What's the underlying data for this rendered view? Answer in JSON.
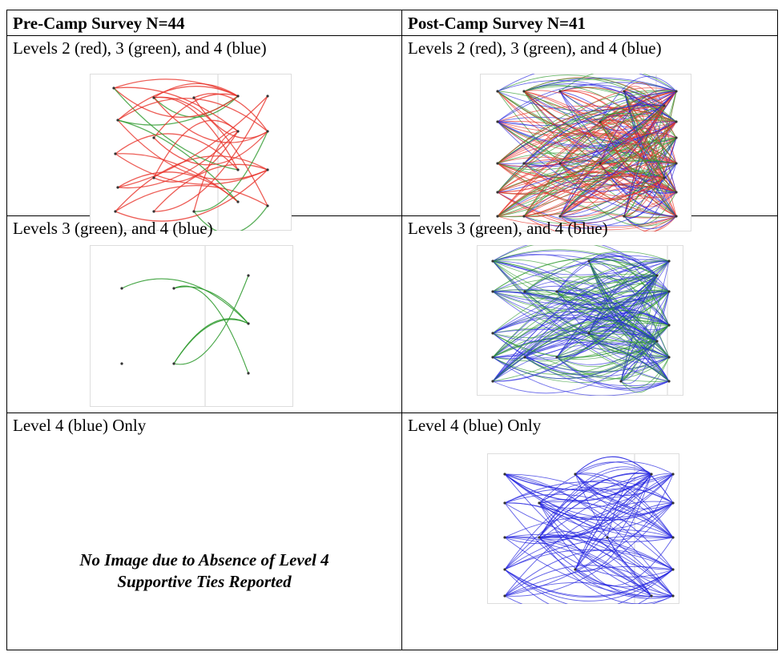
{
  "table": {
    "headers": {
      "pre": "Pre-Camp Survey N=44",
      "post": "Post-Camp Survey N=41"
    },
    "rows": [
      {
        "pre_label": "Levels 2 (red), 3 (green), and 4 (blue)",
        "post_label": "Levels 2 (red), 3 (green), and 4 (blue)"
      },
      {
        "pre_label": "Levels 3 (green), and 4 (blue)",
        "post_label": "Levels 3 (green), and 4 (blue)"
      },
      {
        "pre_label": "Level 4 (blue) Only",
        "post_label": "Level 4 (blue) Only"
      }
    ],
    "no_image_text_line1": "No Image due to Absence of Level 4",
    "no_image_text_line2": "Supportive Ties Reported"
  },
  "colors": {
    "red": "#e8332a",
    "green": "#2e9a2e",
    "blue": "#2727e0",
    "frame": "#dddddd"
  }
}
